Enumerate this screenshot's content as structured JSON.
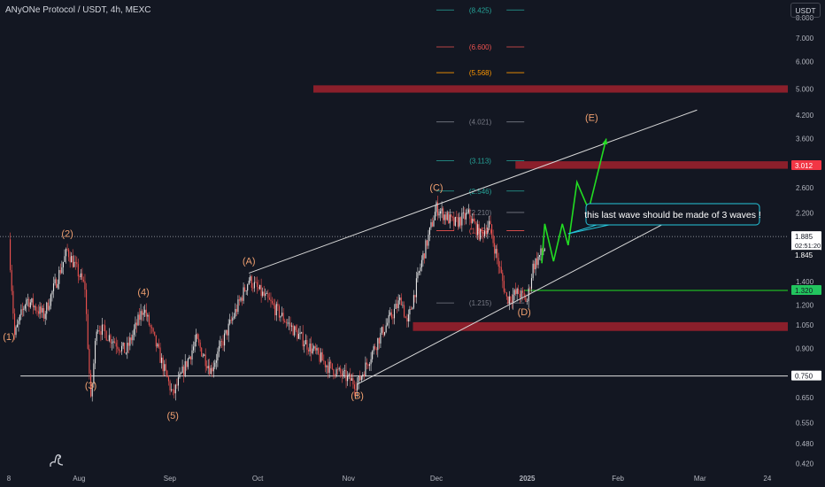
{
  "header": {
    "title": "ANyONe Protocol / USDT, 4h, MEXC",
    "unit": "USDT"
  },
  "colors": {
    "background": "#131722",
    "candle_up": "#e6e6e6",
    "candle_down": "#ef5350",
    "zone": "#8b1f2b",
    "wave_label": "#f0a070",
    "projection": "#22dd22",
    "channel": "#d8d8d8",
    "callout_border": "#26c6da",
    "fib_teal": "#26a69a",
    "fib_red": "#ef5350",
    "fib_orange": "#ff9800",
    "fib_gray": "#787b86"
  },
  "chart_data": {
    "type": "candlestick",
    "title": "ANyONe Protocol / USDT, 4h, MEXC",
    "y_scale": "log",
    "ylim": [
      0.4,
      9.0
    ],
    "y_ticks": [
      "8.000",
      "7.000",
      "6.000",
      "5.000",
      "4.200",
      "3.600",
      "2.600",
      "2.200",
      "1.400",
      "1.200",
      "1.050",
      "0.900",
      "0.750",
      "0.650",
      "0.550",
      "0.480",
      "0.420"
    ],
    "x_range": [
      "2024-07-05",
      "2025-03-31"
    ],
    "x_ticks": [
      {
        "label": "8",
        "date": "2024-07-08"
      },
      {
        "label": "Aug",
        "date": "2024-08-01"
      },
      {
        "label": "Sep",
        "date": "2024-09-01"
      },
      {
        "label": "Oct",
        "date": "2024-10-01"
      },
      {
        "label": "Nov",
        "date": "2024-11-01"
      },
      {
        "label": "Dec",
        "date": "2024-12-01"
      },
      {
        "label": "2025",
        "date": "2025-01-01"
      },
      {
        "label": "Feb",
        "date": "2025-02-01"
      },
      {
        "label": "Mar",
        "date": "2025-03-01"
      },
      {
        "label": "24",
        "date": "2025-03-24"
      }
    ],
    "price_path": [
      {
        "date": "2024-07-08",
        "price": 1.85
      },
      {
        "date": "2024-07-09",
        "price": 1.35
      },
      {
        "date": "2024-07-10",
        "price": 0.98
      },
      {
        "date": "2024-07-14",
        "price": 1.25
      },
      {
        "date": "2024-07-20",
        "price": 1.12
      },
      {
        "date": "2024-07-28",
        "price": 1.72
      },
      {
        "date": "2024-08-03",
        "price": 1.35
      },
      {
        "date": "2024-08-05",
        "price": 0.63
      },
      {
        "date": "2024-08-07",
        "price": 1.05
      },
      {
        "date": "2024-08-17",
        "price": 0.88
      },
      {
        "date": "2024-08-23",
        "price": 1.18
      },
      {
        "date": "2024-09-02",
        "price": 0.66
      },
      {
        "date": "2024-09-10",
        "price": 0.95
      },
      {
        "date": "2024-09-15",
        "price": 0.78
      },
      {
        "date": "2024-09-28",
        "price": 1.42
      },
      {
        "date": "2024-10-05",
        "price": 1.22
      },
      {
        "date": "2024-10-15",
        "price": 0.98
      },
      {
        "date": "2024-10-25",
        "price": 0.8
      },
      {
        "date": "2024-11-04",
        "price": 0.71
      },
      {
        "date": "2024-11-11",
        "price": 0.95
      },
      {
        "date": "2024-11-19",
        "price": 1.25
      },
      {
        "date": "2024-11-21",
        "price": 1.05
      },
      {
        "date": "2024-11-26",
        "price": 1.6
      },
      {
        "date": "2024-12-01",
        "price": 2.28
      },
      {
        "date": "2024-12-07",
        "price": 2.05
      },
      {
        "date": "2024-12-12",
        "price": 2.18
      },
      {
        "date": "2024-12-16",
        "price": 1.9
      },
      {
        "date": "2024-12-19",
        "price": 2.05
      },
      {
        "date": "2024-12-25",
        "price": 1.25
      },
      {
        "date": "2024-12-29",
        "price": 1.3
      },
      {
        "date": "2025-01-01",
        "price": 1.23
      },
      {
        "date": "2025-01-03",
        "price": 1.55
      },
      {
        "date": "2025-01-07",
        "price": 1.75
      }
    ],
    "horizontal_levels": [
      {
        "price": 1.885,
        "label": "1.885",
        "style": "dotted-white",
        "tag_bg": "#ffffff",
        "tag_fg": "#131722",
        "sub": "02:51:20"
      },
      {
        "price": 1.845,
        "label": "1.845",
        "style": "tag-only",
        "tag_bg": "#131722",
        "tag_fg": "#ffffff"
      },
      {
        "price": 1.32,
        "label": "1.320",
        "style": "green",
        "tag_bg": "#22c55e",
        "tag_fg": "#131722"
      },
      {
        "price": 0.75,
        "label": "0.750",
        "style": "white",
        "tag_bg": "#ffffff",
        "tag_fg": "#131722"
      },
      {
        "price": 3.012,
        "label": "3.012",
        "style": "zone-tag",
        "tag_bg": "#f23645",
        "tag_fg": "#ffffff"
      }
    ],
    "zones": [
      {
        "from_date": "2024-10-20",
        "to_date": "2025-03-31",
        "top": 5.12,
        "bottom": 4.88
      },
      {
        "from_date": "2024-12-28",
        "to_date": "2025-03-31",
        "top": 3.1,
        "bottom": 2.95
      },
      {
        "from_date": "2024-11-23",
        "to_date": "2025-03-31",
        "top": 1.07,
        "bottom": 1.01
      },
      {
        "from_date": "2024-09-26",
        "to_date": "2025-03-31",
        "top": 9.2,
        "bottom": 9.0
      }
    ],
    "fib_levels": [
      {
        "label": "(8.425)",
        "value": 8.425,
        "color": "teal"
      },
      {
        "label": "(6.600)",
        "value": 6.6,
        "color": "red"
      },
      {
        "label": "(5.568)",
        "value": 5.568,
        "color": "orange"
      },
      {
        "label": "(4.021)",
        "value": 4.021,
        "color": "gray"
      },
      {
        "label": "(3.113)",
        "value": 3.113,
        "color": "teal"
      },
      {
        "label": "(2.546)",
        "value": 2.546,
        "color": "teal"
      },
      {
        "label": "(2.210)",
        "value": 2.21,
        "color": "gray"
      },
      {
        "label": "(1.959)",
        "value": 1.959,
        "color": "red"
      },
      {
        "label": "(1.215)",
        "value": 1.215,
        "color": "gray"
      }
    ],
    "fib_range": {
      "from_date": "2024-12-01",
      "to_date": "2024-12-31"
    },
    "wave_labels": [
      {
        "text": "(1)",
        "date": "2024-07-08",
        "price": 0.95
      },
      {
        "text": "(2)",
        "date": "2024-07-28",
        "price": 1.88
      },
      {
        "text": "(3)",
        "date": "2024-08-05",
        "price": 0.69
      },
      {
        "text": "(4)",
        "date": "2024-08-23",
        "price": 1.28
      },
      {
        "text": "(5)",
        "date": "2024-09-02",
        "price": 0.565
      },
      {
        "text": "(A)",
        "date": "2024-09-28",
        "price": 1.57
      },
      {
        "text": "(B)",
        "date": "2024-11-04",
        "price": 0.645
      },
      {
        "text": "(C)",
        "date": "2024-12-01",
        "price": 2.55
      },
      {
        "text": "(D)",
        "date": "2024-12-31",
        "price": 1.12
      },
      {
        "text": "(E)",
        "date": "2025-01-23",
        "price": 4.05
      }
    ],
    "channel_lines": [
      {
        "from": {
          "date": "2024-09-28",
          "price": 1.48
        },
        "to": {
          "date": "2025-02-28",
          "price": 4.35
        }
      },
      {
        "from": {
          "date": "2024-11-04",
          "price": 0.71
        },
        "to": {
          "date": "2025-02-28",
          "price": 2.3
        }
      },
      {
        "from": {
          "date": "2024-07-05",
          "price": 1.885
        },
        "to": {
          "date": "2025-03-31",
          "price": 1.885
        }
      }
    ],
    "support_line": {
      "from_date": "2024-07-12",
      "to_date": "2025-03-31",
      "price": 0.75
    },
    "green_level_line": {
      "from_date": "2024-12-31",
      "to_date": "2025-03-31",
      "price": 1.32
    },
    "projection_path": [
      {
        "date": "2025-01-06",
        "price": 1.58
      },
      {
        "date": "2025-01-07",
        "price": 2.05
      },
      {
        "date": "2025-01-10",
        "price": 1.6
      },
      {
        "date": "2025-01-13",
        "price": 2.05
      },
      {
        "date": "2025-01-15",
        "price": 1.78
      },
      {
        "date": "2025-01-18",
        "price": 2.7
      },
      {
        "date": "2025-01-22",
        "price": 2.25
      },
      {
        "date": "2025-01-28",
        "price": 3.6
      }
    ],
    "callout": {
      "text": "this last wave should be made of 3 waves !",
      "date": "2025-01-15",
      "price": 1.92
    }
  }
}
